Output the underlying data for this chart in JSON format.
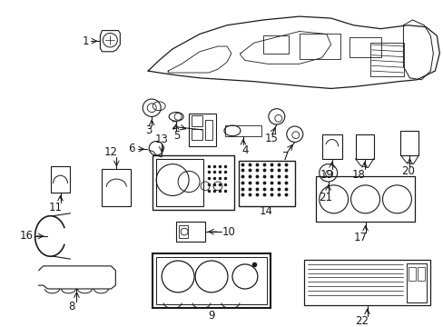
{
  "bg_color": "#ffffff",
  "line_color": "#1a1a1a",
  "figsize": [
    4.89,
    3.6
  ],
  "dpi": 100,
  "label_fontsize": 8.5
}
